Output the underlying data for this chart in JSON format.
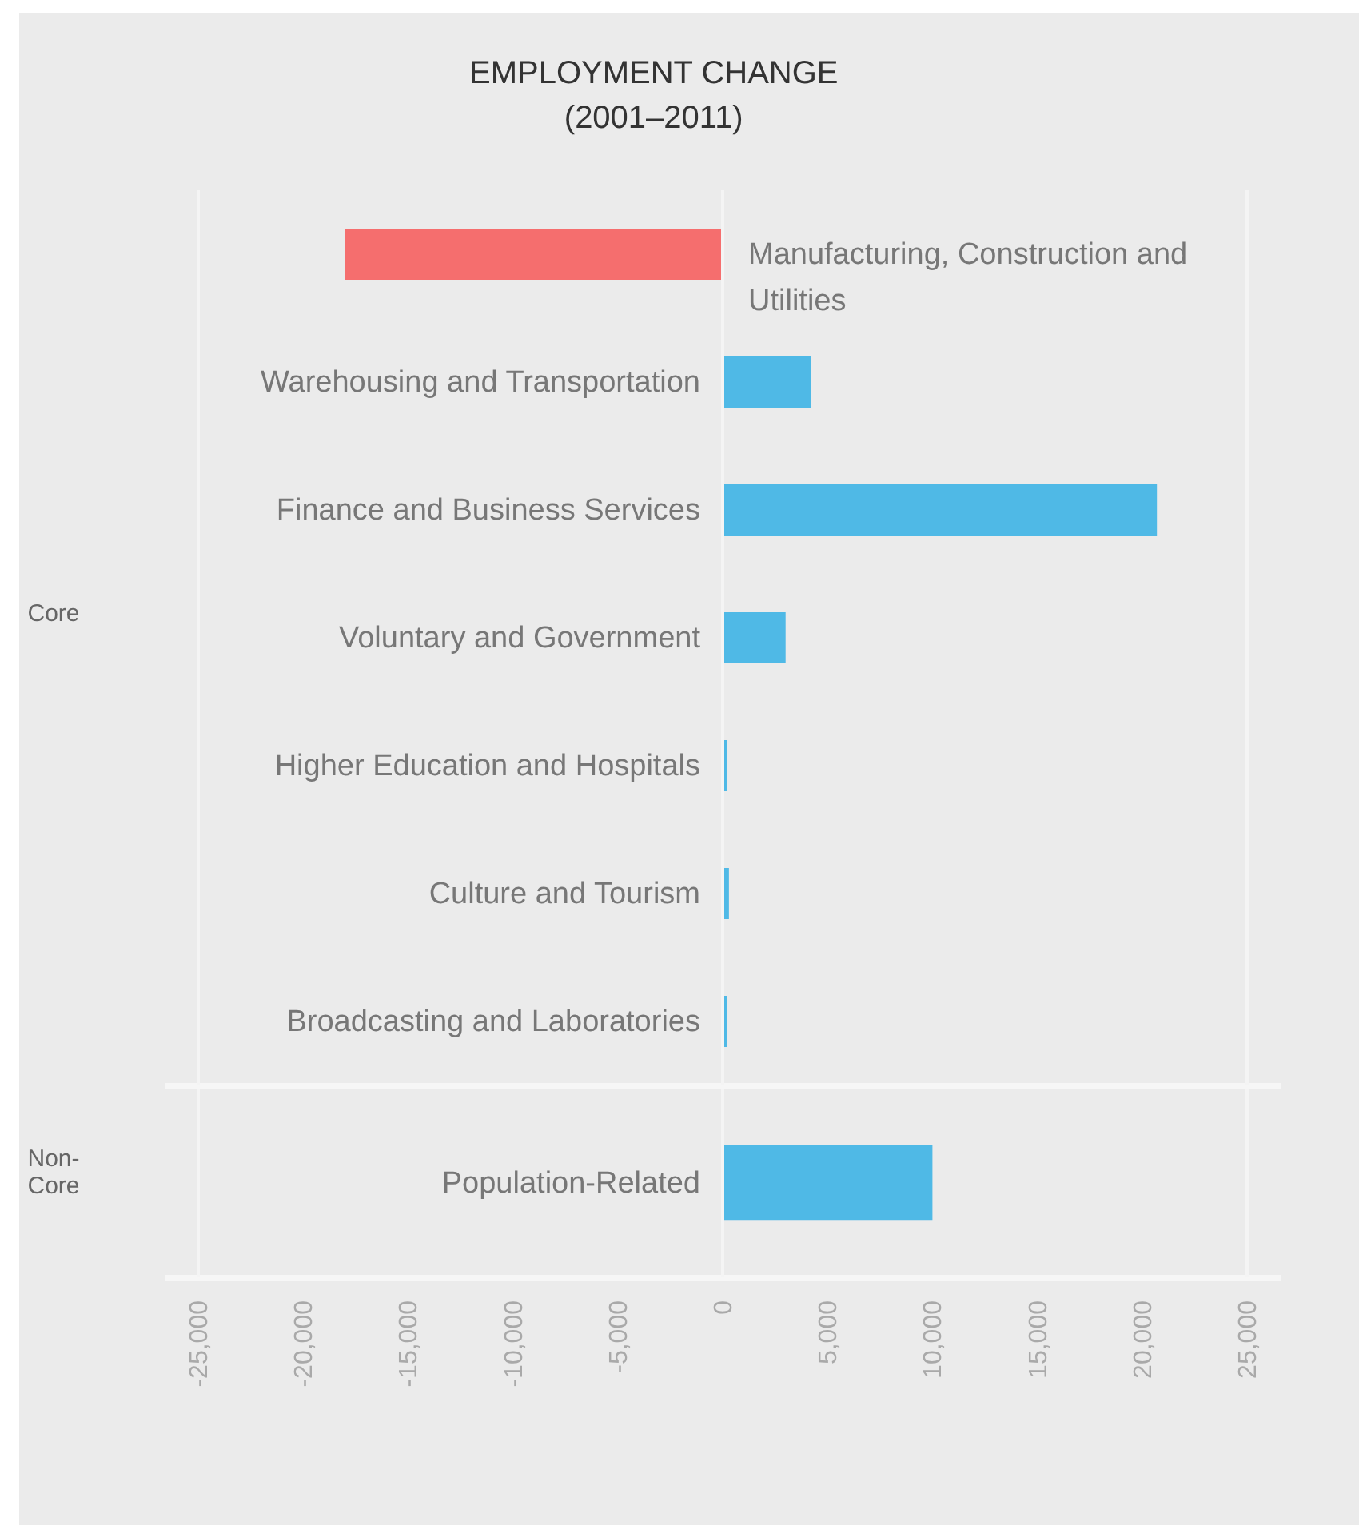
{
  "chart_data": [
    {
      "type": "bar",
      "orientation": "horizontal",
      "title": "EMPLOYMENT CHANGE",
      "subtitle": "(2001–2011)",
      "ylabel": "Core",
      "categories": [
        "Manufacturing, Construction and Utilities",
        "Warehousing and Transportation",
        "Finance and Business Services",
        "Voluntary and Government",
        "Higher Education and Hospitals",
        "Culture and Tourism",
        "Broadcasting and Laboratories"
      ],
      "values": [
        -18000,
        4200,
        20700,
        3000,
        200,
        300,
        200
      ],
      "colors": [
        "#f56e6e",
        "#4fb9e6",
        "#4fb9e6",
        "#4fb9e6",
        "#4fb9e6",
        "#4fb9e6",
        "#4fb9e6"
      ],
      "xlim": [
        -26600,
        26600
      ],
      "ref_lines": [
        {
          "axis": "x",
          "value": -25000,
          "color": "#f4f4f4"
        },
        {
          "axis": "x",
          "value": 0,
          "color": "#f4f4f4"
        },
        {
          "axis": "x",
          "value": 25000,
          "color": "#f4f4f4"
        }
      ],
      "tick_labels": "y"
    },
    {
      "type": "bar",
      "orientation": "horizontal",
      "ylabel": "Non-Core",
      "categories": [
        "Population-Related"
      ],
      "values": [
        10000
      ],
      "colors": [
        "#4fb9e6"
      ],
      "xlim": [
        -26600,
        26600
      ],
      "xticks": [
        {
          "value": -25000,
          "label": "-25,000"
        },
        {
          "value": -20000,
          "label": "-20,000"
        },
        {
          "value": -15000,
          "label": "-15,000"
        },
        {
          "value": -10000,
          "label": "-10,000"
        },
        {
          "value": -5000,
          "label": "-5,000"
        },
        0,
        {
          "value": 5000,
          "label": "5,000"
        },
        {
          "value": 10000,
          "label": "10,000"
        },
        {
          "value": 15000,
          "label": "15,000"
        },
        {
          "value": 20000,
          "label": "20,000"
        },
        {
          "value": 25000,
          "label": "25,000"
        }
      ],
      "ref_lines": [
        {
          "axis": "x",
          "value": -25000,
          "color": "#f4f4f4"
        },
        {
          "axis": "x",
          "value": 0,
          "color": "#f4f4f4"
        },
        {
          "axis": "x",
          "value": 25000,
          "color": "#f4f4f4"
        }
      ]
    }
  ]
}
